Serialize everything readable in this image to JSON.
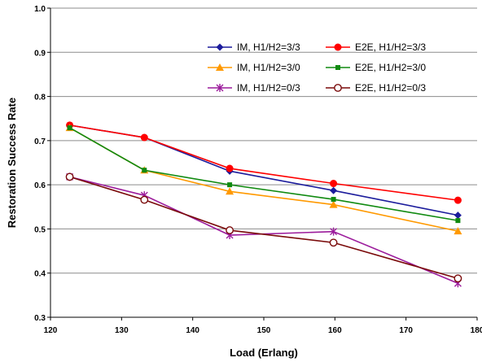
{
  "chart_data": {
    "type": "line",
    "xlabel": "Load (Erlang)",
    "ylabel": "Restoration Success Rate",
    "xlim": [
      120,
      180
    ],
    "ylim": [
      0.3,
      1.0
    ],
    "x_ticks": [
      120,
      130,
      140,
      150,
      160,
      170,
      180
    ],
    "x_tick_labels": [
      "120",
      "130",
      "140",
      "150",
      "160",
      "170",
      "180"
    ],
    "y_ticks": [
      0.3,
      0.4,
      0.5,
      0.6,
      0.7,
      0.8,
      0.9,
      1.0
    ],
    "y_tick_labels": [
      "0.3",
      "0.4",
      "0.5",
      "0.6",
      "0.7",
      "0.8",
      "0.9",
      "1.0"
    ],
    "grid": "horizontal",
    "legend_position": "top-right",
    "x": [
      122.7,
      133.2,
      145.2,
      159.8,
      177.3
    ],
    "series": [
      {
        "name": "IM, H1/H2=3/3",
        "values": [
          0.735,
          0.707,
          0.631,
          0.587,
          0.531
        ],
        "color": "#1c1c9c",
        "marker": "diamond"
      },
      {
        "name": "E2E, H1/H2=3/3",
        "values": [
          0.735,
          0.707,
          0.637,
          0.603,
          0.565
        ],
        "color": "#ff0000",
        "marker": "circle-filled"
      },
      {
        "name": "IM, H1/H2=3/0",
        "values": [
          0.729,
          0.633,
          0.585,
          0.555,
          0.495
        ],
        "color": "#ff9900",
        "marker": "triangle"
      },
      {
        "name": "E2E, H1/H2=3/0",
        "values": [
          0.729,
          0.633,
          0.6,
          0.567,
          0.519
        ],
        "color": "#108a10",
        "marker": "square"
      },
      {
        "name": "IM, H1/H2=0/3",
        "values": [
          0.618,
          0.576,
          0.486,
          0.494,
          0.377
        ],
        "color": "#9c1c9c",
        "marker": "star"
      },
      {
        "name": "E2E, H1/H2=0/3",
        "values": [
          0.618,
          0.566,
          0.497,
          0.469,
          0.388
        ],
        "color": "#7a0a0a",
        "marker": "circle-open"
      }
    ]
  }
}
